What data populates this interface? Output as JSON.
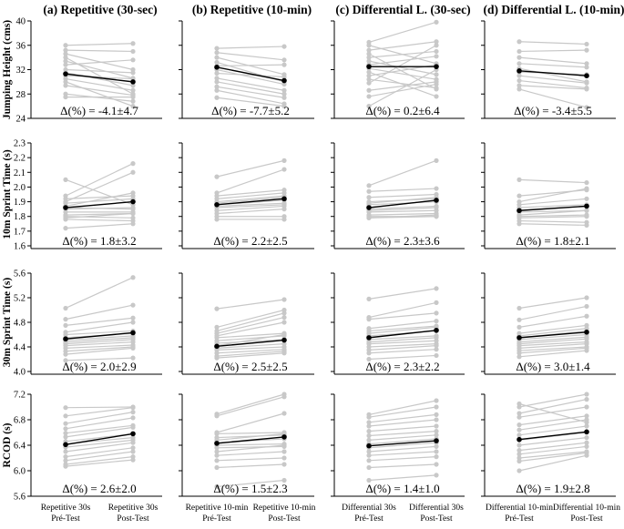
{
  "chart_data": {
    "type": "line",
    "row_ylabels": [
      "Jumping Height (cms)",
      "10m Sprint Time (s)",
      "30m Sprint Time (s)",
      "RCOD (s)"
    ],
    "rows": [
      {
        "ylim": [
          24,
          40
        ],
        "yticks": [
          "24",
          "28",
          "32",
          "36",
          "40"
        ]
      },
      {
        "ylim": [
          1.6,
          2.3
        ],
        "yticks": [
          "1.6",
          "1.7",
          "1.8",
          "1.9",
          "2.0",
          "2.1",
          "2.2",
          "2.3"
        ]
      },
      {
        "ylim": [
          4.0,
          5.6
        ],
        "yticks": [
          "4.0",
          "4.4",
          "4.8",
          "5.2",
          "5.6"
        ]
      },
      {
        "ylim": [
          5.6,
          7.2
        ],
        "yticks": [
          "5.6",
          "6.0",
          "6.4",
          "6.8",
          "7.2"
        ]
      }
    ],
    "columns": [
      {
        "title": "(a) Repetitive (30-sec)",
        "xticks": [
          "Repetitive 30s\nPré-Test",
          "Repetitive 30s\nPost-Test"
        ]
      },
      {
        "title": "(b) Repetitive (10-min)",
        "xticks": [
          "Repetitive 10-min\nPré-Test",
          "Repetitive 10-min\nPost-Test"
        ]
      },
      {
        "title": "(c) Differential L. (30-sec)",
        "xticks": [
          "Differential 30s\nPré-Test",
          "Differential 30s\nPost-Test"
        ]
      },
      {
        "title": "(d) Differential L. (10-min)",
        "xticks": [
          "Differential 10-min\nPré-Test",
          "Differential 10-min\nPost-Test"
        ]
      }
    ],
    "panels": [
      [
        {
          "delta": "Δ(%) = -4.1±4.7",
          "mean": [
            31.3,
            30.0
          ],
          "pairs": [
            [
              36.0,
              36.3
            ],
            [
              35.2,
              35.0
            ],
            [
              34.6,
              32.0
            ],
            [
              34.0,
              28.0
            ],
            [
              33.4,
              30.6
            ],
            [
              32.8,
              33.6
            ],
            [
              32.0,
              31.5
            ],
            [
              31.5,
              29.4
            ],
            [
              31.0,
              30.5
            ],
            [
              30.5,
              28.6
            ],
            [
              30.0,
              26.0
            ],
            [
              29.4,
              27.8
            ],
            [
              28.0,
              26.8
            ],
            [
              27.5,
              27.5
            ]
          ]
        },
        {
          "delta": "Δ(%) = -7.7±5.2",
          "mean": [
            32.4,
            30.2
          ],
          "pairs": [
            [
              35.5,
              35.8
            ],
            [
              34.8,
              33.6
            ],
            [
              34.0,
              31.2
            ],
            [
              33.2,
              30.0
            ],
            [
              32.6,
              32.8
            ],
            [
              32.0,
              29.6
            ],
            [
              31.4,
              30.8
            ],
            [
              30.6,
              28.6
            ],
            [
              30.0,
              28.0
            ],
            [
              29.2,
              27.4
            ],
            [
              28.6,
              26.4
            ],
            [
              27.4,
              26.0
            ]
          ]
        },
        {
          "delta": "Δ(%) = 0.2±6.4",
          "mean": [
            32.5,
            32.5
          ],
          "pairs": [
            [
              36.5,
              39.8
            ],
            [
              36.0,
              33.0
            ],
            [
              35.2,
              36.6
            ],
            [
              34.6,
              28.8
            ],
            [
              34.0,
              35.0
            ],
            [
              33.4,
              31.2
            ],
            [
              32.8,
              34.2
            ],
            [
              32.2,
              30.4
            ],
            [
              31.6,
              27.6
            ],
            [
              31.0,
              32.8
            ],
            [
              30.4,
              29.0
            ],
            [
              29.8,
              36.0
            ],
            [
              28.6,
              30.0
            ],
            [
              27.6,
              29.6
            ],
            [
              26.0,
              32.0
            ]
          ]
        },
        {
          "delta": "Δ(%) = -3.4±5.5",
          "mean": [
            31.8,
            31.0
          ],
          "pairs": [
            [
              36.6,
              36.2
            ],
            [
              35.0,
              35.2
            ],
            [
              34.0,
              33.0
            ],
            [
              33.0,
              32.4
            ],
            [
              32.2,
              30.0
            ],
            [
              31.6,
              31.2
            ],
            [
              31.0,
              29.8
            ],
            [
              30.2,
              29.0
            ],
            [
              29.4,
              28.8
            ],
            [
              28.8,
              25.8
            ]
          ]
        }
      ],
      [
        {
          "delta": "Δ(%) = 1.8±3.2",
          "mean": [
            1.86,
            1.9
          ],
          "pairs": [
            [
              2.05,
              1.88
            ],
            [
              1.94,
              2.16
            ],
            [
              1.92,
              1.94
            ],
            [
              1.9,
              2.1
            ],
            [
              1.89,
              1.92
            ],
            [
              1.87,
              1.96
            ],
            [
              1.86,
              1.85
            ],
            [
              1.85,
              1.86
            ],
            [
              1.83,
              1.83
            ],
            [
              1.81,
              1.82
            ],
            [
              1.8,
              1.79
            ],
            [
              1.79,
              1.82
            ],
            [
              1.78,
              1.77
            ],
            [
              1.72,
              1.75
            ]
          ]
        },
        {
          "delta": "Δ(%) = 2.2±2.5",
          "mean": [
            1.88,
            1.92
          ],
          "pairs": [
            [
              2.07,
              2.18
            ],
            [
              1.96,
              2.12
            ],
            [
              1.94,
              1.98
            ],
            [
              1.92,
              1.96
            ],
            [
              1.9,
              1.94
            ],
            [
              1.89,
              1.93
            ],
            [
              1.88,
              1.91
            ],
            [
              1.87,
              1.89
            ],
            [
              1.86,
              1.88
            ],
            [
              1.84,
              1.87
            ],
            [
              1.82,
              1.85
            ],
            [
              1.8,
              1.8
            ],
            [
              1.78,
              1.78
            ]
          ]
        },
        {
          "delta": "Δ(%) = 2.3±3.6",
          "mean": [
            1.86,
            1.91
          ],
          "pairs": [
            [
              2.01,
              2.18
            ],
            [
              1.97,
              1.99
            ],
            [
              1.93,
              1.95
            ],
            [
              1.9,
              1.92
            ],
            [
              1.89,
              1.93
            ],
            [
              1.88,
              1.9
            ],
            [
              1.86,
              1.91
            ],
            [
              1.85,
              1.87
            ],
            [
              1.84,
              1.86
            ],
            [
              1.83,
              1.84
            ],
            [
              1.81,
              1.82
            ],
            [
              1.8,
              1.8
            ],
            [
              1.79,
              1.81
            ],
            [
              1.79,
              1.8
            ]
          ]
        },
        {
          "delta": "Δ(%) = 1.8±2.1",
          "mean": [
            1.84,
            1.87
          ],
          "pairs": [
            [
              2.05,
              2.03
            ],
            [
              1.94,
              1.98
            ],
            [
              1.9,
              1.99
            ],
            [
              1.88,
              1.92
            ],
            [
              1.86,
              1.88
            ],
            [
              1.84,
              1.87
            ],
            [
              1.83,
              1.84
            ],
            [
              1.81,
              1.84
            ],
            [
              1.8,
              1.81
            ],
            [
              1.79,
              1.8
            ],
            [
              1.77,
              1.76
            ],
            [
              1.75,
              1.74
            ]
          ]
        }
      ],
      [
        {
          "delta": "Δ(%) = 2.0±2.9",
          "mean": [
            4.53,
            4.63
          ],
          "pairs": [
            [
              5.03,
              5.53
            ],
            [
              4.85,
              5.08
            ],
            [
              4.75,
              4.87
            ],
            [
              4.64,
              4.8
            ],
            [
              4.6,
              4.66
            ],
            [
              4.55,
              4.62
            ],
            [
              4.51,
              4.58
            ],
            [
              4.48,
              4.55
            ],
            [
              4.45,
              4.52
            ],
            [
              4.42,
              4.48
            ],
            [
              4.38,
              4.43
            ],
            [
              4.33,
              4.4
            ],
            [
              4.28,
              4.38
            ],
            [
              4.18,
              4.22
            ]
          ]
        },
        {
          "delta": "Δ(%) = 2.5±2.5",
          "mean": [
            4.41,
            4.51
          ],
          "pairs": [
            [
              5.02,
              5.17
            ],
            [
              4.72,
              5.0
            ],
            [
              4.66,
              4.95
            ],
            [
              4.62,
              4.88
            ],
            [
              4.58,
              4.8
            ],
            [
              4.55,
              4.62
            ],
            [
              4.5,
              4.58
            ],
            [
              4.46,
              4.52
            ],
            [
              4.42,
              4.6
            ],
            [
              4.38,
              4.45
            ],
            [
              4.35,
              4.4
            ],
            [
              4.3,
              4.36
            ],
            [
              4.25,
              4.33
            ],
            [
              4.22,
              4.3
            ]
          ]
        },
        {
          "delta": "Δ(%) = 2.3±2.2",
          "mean": [
            4.55,
            4.67
          ],
          "pairs": [
            [
              5.18,
              5.35
            ],
            [
              4.88,
              5.12
            ],
            [
              4.85,
              4.95
            ],
            [
              4.7,
              4.82
            ],
            [
              4.66,
              4.74
            ],
            [
              4.62,
              4.72
            ],
            [
              4.58,
              4.66
            ],
            [
              4.52,
              4.58
            ],
            [
              4.48,
              4.55
            ],
            [
              4.45,
              4.5
            ],
            [
              4.4,
              4.45
            ],
            [
              4.35,
              4.42
            ],
            [
              4.3,
              4.36
            ],
            [
              4.2,
              4.26
            ]
          ]
        },
        {
          "delta": "Δ(%) = 3.0±1.4",
          "mean": [
            4.55,
            4.64
          ],
          "pairs": [
            [
              5.03,
              5.2
            ],
            [
              4.84,
              5.06
            ],
            [
              4.72,
              4.9
            ],
            [
              4.62,
              4.75
            ],
            [
              4.58,
              4.7
            ],
            [
              4.55,
              4.66
            ],
            [
              4.52,
              4.6
            ],
            [
              4.48,
              4.56
            ],
            [
              4.45,
              4.53
            ],
            [
              4.42,
              4.48
            ],
            [
              4.38,
              4.45
            ],
            [
              4.34,
              4.4
            ],
            [
              4.3,
              4.38
            ],
            [
              4.24,
              4.34
            ]
          ]
        }
      ],
      [
        {
          "delta": "Δ(%) = 2.6±2.0",
          "mean": [
            6.41,
            6.58
          ],
          "pairs": [
            [
              6.99,
              7.0
            ],
            [
              6.86,
              6.99
            ],
            [
              6.74,
              6.92
            ],
            [
              6.66,
              6.83
            ],
            [
              6.59,
              6.71
            ],
            [
              6.53,
              6.68
            ],
            [
              6.46,
              6.58
            ],
            [
              6.42,
              6.52
            ],
            [
              6.37,
              6.48
            ],
            [
              6.3,
              6.44
            ],
            [
              6.22,
              6.36
            ],
            [
              6.16,
              6.3
            ],
            [
              6.1,
              6.22
            ],
            [
              6.07,
              6.17
            ]
          ]
        },
        {
          "delta": "Δ(%) = 1.5±2.3",
          "mean": [
            6.43,
            6.53
          ],
          "pairs": [
            [
              6.89,
              7.2
            ],
            [
              6.86,
              7.16
            ],
            [
              6.6,
              6.9
            ],
            [
              6.58,
              6.6
            ],
            [
              6.52,
              6.56
            ],
            [
              6.48,
              6.58
            ],
            [
              6.44,
              6.5
            ],
            [
              6.4,
              6.42
            ],
            [
              6.36,
              6.38
            ],
            [
              6.3,
              6.4
            ],
            [
              6.24,
              6.3
            ],
            [
              6.16,
              6.2
            ],
            [
              6.05,
              6.1
            ],
            [
              5.75,
              5.85
            ]
          ]
        },
        {
          "delta": "Δ(%) = 1.4±1.0",
          "mean": [
            6.39,
            6.47
          ],
          "pairs": [
            [
              6.88,
              7.1
            ],
            [
              6.84,
              7.0
            ],
            [
              6.76,
              6.88
            ],
            [
              6.7,
              6.8
            ],
            [
              6.62,
              6.7
            ],
            [
              6.55,
              6.62
            ],
            [
              6.48,
              6.56
            ],
            [
              6.42,
              6.5
            ],
            [
              6.36,
              6.44
            ],
            [
              6.3,
              6.38
            ],
            [
              6.24,
              6.3
            ],
            [
              6.16,
              6.22
            ],
            [
              6.05,
              6.1
            ],
            [
              5.85,
              5.93
            ]
          ]
        },
        {
          "delta": "Δ(%) = 1.9±2.8",
          "mean": [
            6.49,
            6.61
          ],
          "pairs": [
            [
              7.05,
              6.76
            ],
            [
              7.0,
              7.2
            ],
            [
              6.9,
              7.12
            ],
            [
              6.84,
              7.0
            ],
            [
              6.72,
              6.86
            ],
            [
              6.64,
              6.8
            ],
            [
              6.56,
              6.7
            ],
            [
              6.48,
              6.6
            ],
            [
              6.4,
              6.52
            ],
            [
              6.32,
              6.44
            ],
            [
              6.26,
              6.38
            ],
            [
              6.2,
              6.3
            ],
            [
              6.15,
              6.28
            ],
            [
              6.0,
              6.24
            ]
          ]
        }
      ]
    ]
  }
}
